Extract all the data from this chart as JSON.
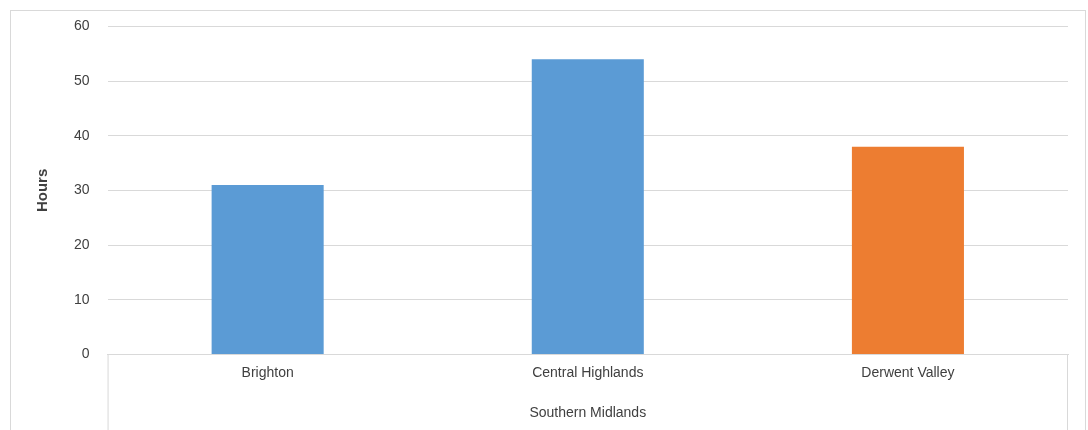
{
  "chart_data": {
    "type": "bar",
    "xlabel": "Southern Midlands",
    "ylabel": "Hours",
    "categories": [
      "Brighton",
      "Central Highlands",
      "Derwent Valley"
    ],
    "values": [
      31,
      54,
      38
    ],
    "colors": [
      "#5b9bd5",
      "#5b9bd5",
      "#ed7d31"
    ],
    "ylim": [
      0,
      60
    ],
    "yticks": [
      0,
      10,
      20,
      30,
      40,
      50,
      60
    ],
    "grid": "y",
    "legend": false
  }
}
